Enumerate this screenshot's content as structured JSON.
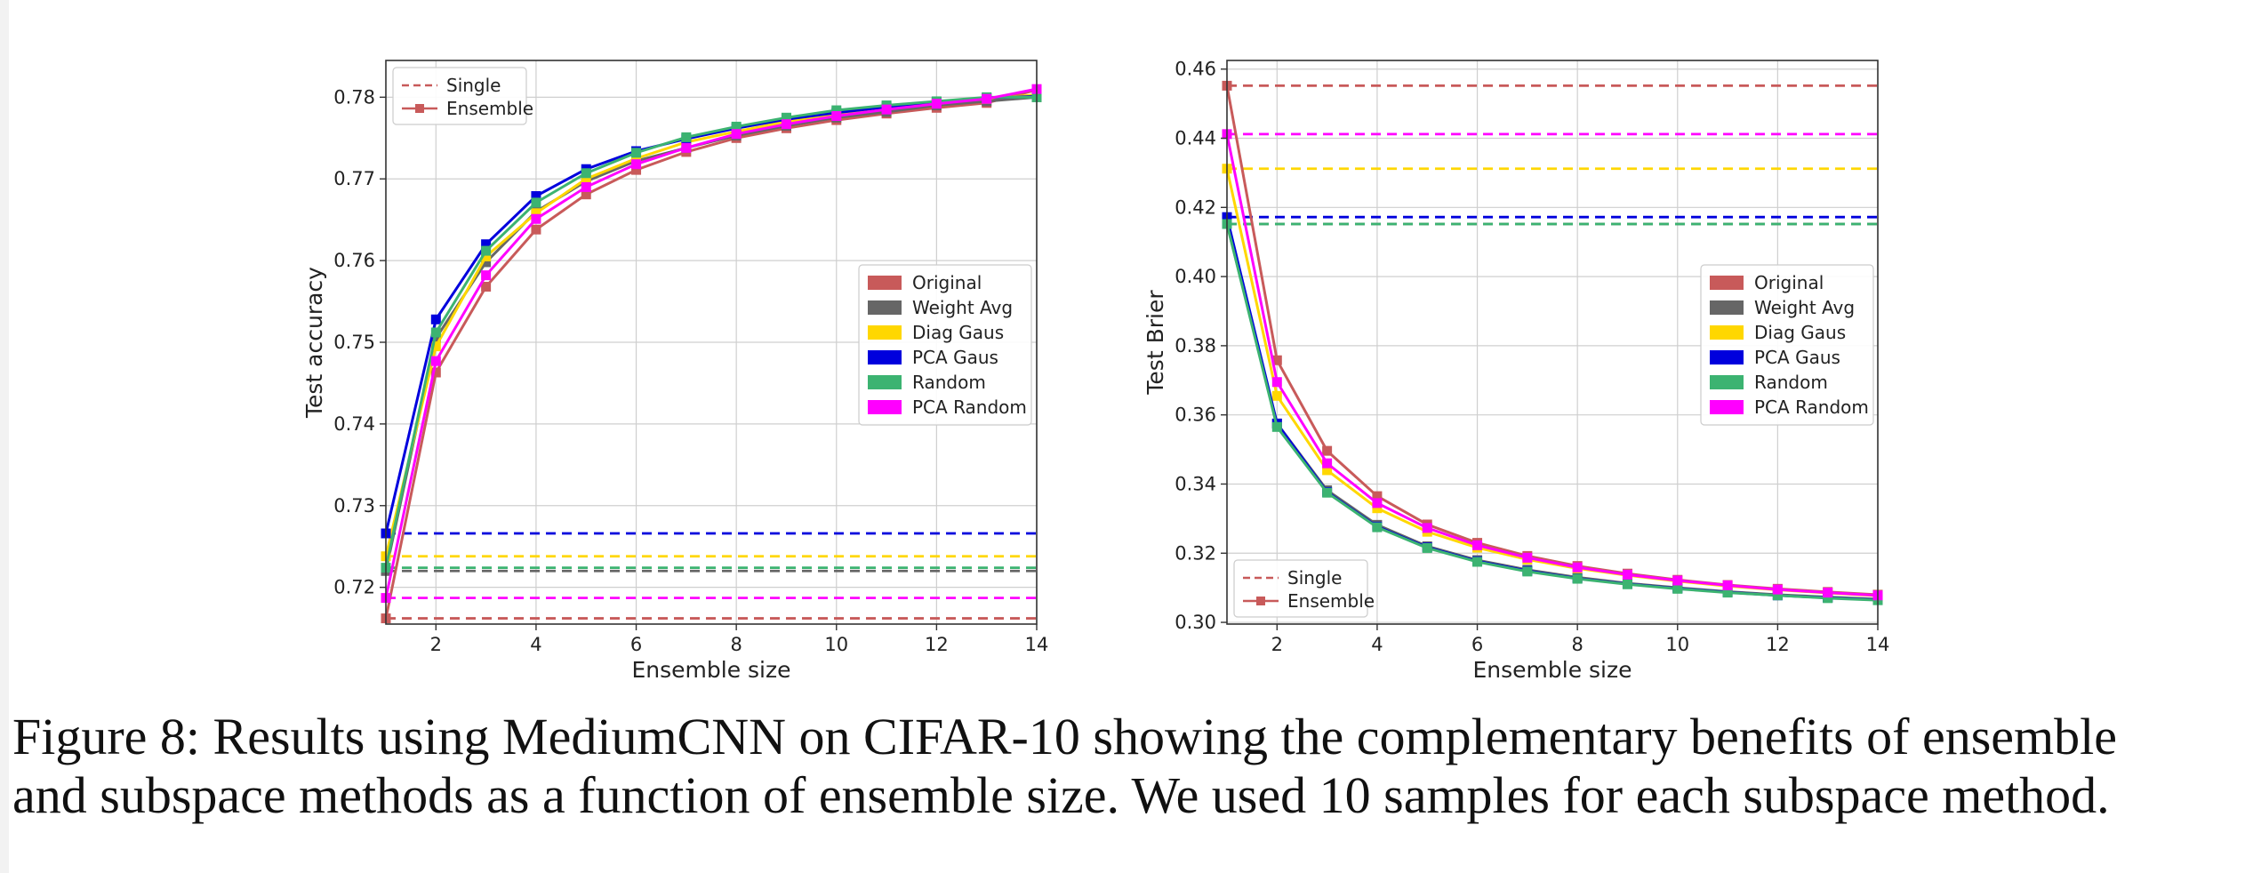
{
  "caption": {
    "line1": "Figure 8:  Results using MediumCNN on CIFAR-10 showing the complementary benefits of ensemble",
    "line2": "and subspace methods as a function of ensemble size. We used 10 samples for each subspace method."
  },
  "colors": {
    "Original": "#c85a5a",
    "Weight Avg": "#666666",
    "Diag Gaus": "#ffd700",
    "PCA Gaus": "#0000dd",
    "Random": "#3cb371",
    "PCA Random": "#ff00ff",
    "grid": "#cfcfcf"
  },
  "chart_data": [
    {
      "type": "line",
      "xlabel": "Ensemble size",
      "ylabel": "Test accuracy",
      "xlim": [
        1,
        14
      ],
      "ylim": [
        0.7155,
        0.7845
      ],
      "xticks": [
        2,
        4,
        6,
        8,
        10,
        12,
        14
      ],
      "yticks": [
        0.72,
        0.73,
        0.74,
        0.75,
        0.76,
        0.77,
        0.78
      ],
      "grid": true,
      "style_legend": {
        "placement": "upper-left",
        "entries": [
          "Single",
          "Ensemble"
        ]
      },
      "method_legend": {
        "placement": "center-right",
        "entries": [
          "Original",
          "Weight Avg",
          "Diag Gaus",
          "PCA Gaus",
          "Random",
          "PCA Random"
        ]
      },
      "x": [
        1,
        2,
        3,
        4,
        5,
        6,
        7,
        8,
        9,
        10,
        11,
        12,
        13,
        14
      ],
      "single": [
        {
          "name": "Original",
          "value": 0.7162
        },
        {
          "name": "Weight Avg",
          "value": 0.722
        },
        {
          "name": "Diag Gaus",
          "value": 0.7238
        },
        {
          "name": "PCA Gaus",
          "value": 0.7266
        },
        {
          "name": "Random",
          "value": 0.7224
        },
        {
          "name": "PCA Random",
          "value": 0.7187
        }
      ],
      "series": [
        {
          "name": "Original",
          "values": [
            0.7162,
            0.7463,
            0.7568,
            0.7638,
            0.7681,
            0.7711,
            0.7733,
            0.775,
            0.7762,
            0.7772,
            0.778,
            0.7787,
            0.7793,
            0.7809
          ]
        },
        {
          "name": "Weight Avg",
          "values": [
            0.722,
            0.7505,
            0.7598,
            0.766,
            0.7697,
            0.7722,
            0.7738,
            0.7753,
            0.7765,
            0.7775,
            0.7782,
            0.779,
            0.7795,
            0.78
          ]
        },
        {
          "name": "Diag Gaus",
          "values": [
            0.7238,
            0.7495,
            0.7605,
            0.7658,
            0.77,
            0.7725,
            0.7745,
            0.7758,
            0.777,
            0.7779,
            0.7787,
            0.7793,
            0.7798,
            0.7803
          ]
        },
        {
          "name": "PCA Gaus",
          "values": [
            0.7266,
            0.7528,
            0.762,
            0.7679,
            0.7712,
            0.7734,
            0.7749,
            0.7762,
            0.7773,
            0.7781,
            0.7788,
            0.7794,
            0.7799,
            0.7801
          ]
        },
        {
          "name": "Random",
          "values": [
            0.7224,
            0.7512,
            0.7612,
            0.7671,
            0.7707,
            0.7732,
            0.7751,
            0.7764,
            0.7775,
            0.7784,
            0.779,
            0.7795,
            0.78,
            0.78
          ]
        },
        {
          "name": "PCA Random",
          "values": [
            0.7187,
            0.7477,
            0.7582,
            0.7651,
            0.769,
            0.7718,
            0.7738,
            0.7755,
            0.7767,
            0.7777,
            0.7785,
            0.7792,
            0.7798,
            0.781
          ]
        }
      ]
    },
    {
      "type": "line",
      "xlabel": "Ensemble size",
      "ylabel": "Test Brier",
      "xlim": [
        1,
        14
      ],
      "ylim": [
        0.2995,
        0.4625
      ],
      "xticks": [
        2,
        4,
        6,
        8,
        10,
        12,
        14
      ],
      "yticks": [
        0.3,
        0.32,
        0.34,
        0.36,
        0.38,
        0.4,
        0.42,
        0.44,
        0.46
      ],
      "grid": true,
      "style_legend": {
        "placement": "lower-left",
        "entries": [
          "Single",
          "Ensemble"
        ]
      },
      "method_legend": {
        "placement": "center-right",
        "entries": [
          "Original",
          "Weight Avg",
          "Diag Gaus",
          "PCA Gaus",
          "Random",
          "PCA Random"
        ]
      },
      "x": [
        1,
        2,
        3,
        4,
        5,
        6,
        7,
        8,
        9,
        10,
        11,
        12,
        13,
        14
      ],
      "single": [
        {
          "name": "Original",
          "value": 0.4552
        },
        {
          "name": "Weight Avg",
          "value": 0.4152
        },
        {
          "name": "Diag Gaus",
          "value": 0.4312
        },
        {
          "name": "PCA Gaus",
          "value": 0.4172
        },
        {
          "name": "Random",
          "value": 0.4152
        },
        {
          "name": "PCA Random",
          "value": 0.4412
        }
      ],
      "series": [
        {
          "name": "Original",
          "values": [
            0.4552,
            0.3758,
            0.3496,
            0.3365,
            0.3283,
            0.323,
            0.3192,
            0.3163,
            0.3141,
            0.3123,
            0.3108,
            0.3097,
            0.3088,
            0.308
          ]
        },
        {
          "name": "Weight Avg",
          "values": [
            0.4152,
            0.3575,
            0.3382,
            0.3282,
            0.322,
            0.318,
            0.3152,
            0.313,
            0.3113,
            0.31,
            0.3089,
            0.308,
            0.3073,
            0.3067
          ]
        },
        {
          "name": "Diag Gaus",
          "values": [
            0.4312,
            0.3655,
            0.344,
            0.333,
            0.3262,
            0.3216,
            0.3182,
            0.3156,
            0.3136,
            0.3119,
            0.3105,
            0.3094,
            0.3085,
            0.3077
          ]
        },
        {
          "name": "PCA Gaus",
          "values": [
            0.4172,
            0.3575,
            0.3377,
            0.3277,
            0.3217,
            0.3177,
            0.3149,
            0.3127,
            0.3111,
            0.3098,
            0.3087,
            0.3078,
            0.3071,
            0.3065
          ]
        },
        {
          "name": "Random",
          "values": [
            0.4152,
            0.3565,
            0.3375,
            0.3275,
            0.3215,
            0.3175,
            0.3147,
            0.3126,
            0.311,
            0.3097,
            0.3086,
            0.3078,
            0.307,
            0.3064
          ]
        },
        {
          "name": "PCA Random",
          "values": [
            0.4412,
            0.3695,
            0.346,
            0.3345,
            0.3273,
            0.3223,
            0.3187,
            0.3159,
            0.3138,
            0.3121,
            0.3107,
            0.3095,
            0.3086,
            0.3078
          ]
        }
      ]
    }
  ]
}
